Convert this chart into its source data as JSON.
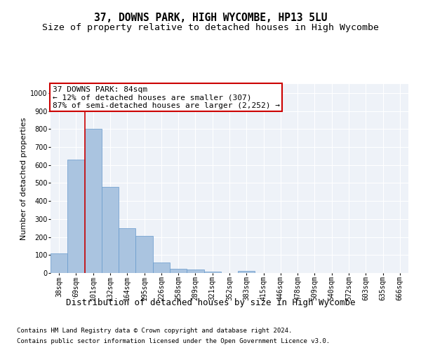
{
  "title_line1": "37, DOWNS PARK, HIGH WYCOMBE, HP13 5LU",
  "title_line2": "Size of property relative to detached houses in High Wycombe",
  "xlabel": "Distribution of detached houses by size in High Wycombe",
  "ylabel": "Number of detached properties",
  "categories": [
    "38sqm",
    "69sqm",
    "101sqm",
    "132sqm",
    "164sqm",
    "195sqm",
    "226sqm",
    "258sqm",
    "289sqm",
    "321sqm",
    "352sqm",
    "383sqm",
    "415sqm",
    "446sqm",
    "478sqm",
    "509sqm",
    "540sqm",
    "572sqm",
    "603sqm",
    "635sqm",
    "666sqm"
  ],
  "values": [
    110,
    630,
    800,
    480,
    250,
    205,
    60,
    25,
    18,
    8,
    0,
    10,
    0,
    0,
    0,
    0,
    0,
    0,
    0,
    0,
    0
  ],
  "bar_color": "#aac4e0",
  "bar_edge_color": "#6699cc",
  "annotation_line1": "37 DOWNS PARK: 84sqm",
  "annotation_line2": "← 12% of detached houses are smaller (307)",
  "annotation_line3": "87% of semi-detached houses are larger (2,252) →",
  "annotation_box_color": "#ffffff",
  "annotation_box_edge": "#cc0000",
  "vline_x": 1.5,
  "vline_color": "#cc0000",
  "ylim": [
    0,
    1050
  ],
  "yticks": [
    0,
    100,
    200,
    300,
    400,
    500,
    600,
    700,
    800,
    900,
    1000
  ],
  "background_color": "#eef2f8",
  "grid_color": "#ffffff",
  "footer_line1": "Contains HM Land Registry data © Crown copyright and database right 2024.",
  "footer_line2": "Contains public sector information licensed under the Open Government Licence v3.0.",
  "title_fontsize": 10.5,
  "subtitle_fontsize": 9.5,
  "xlabel_fontsize": 9,
  "ylabel_fontsize": 8,
  "tick_fontsize": 7,
  "annotation_fontsize": 8,
  "footer_fontsize": 6.5
}
